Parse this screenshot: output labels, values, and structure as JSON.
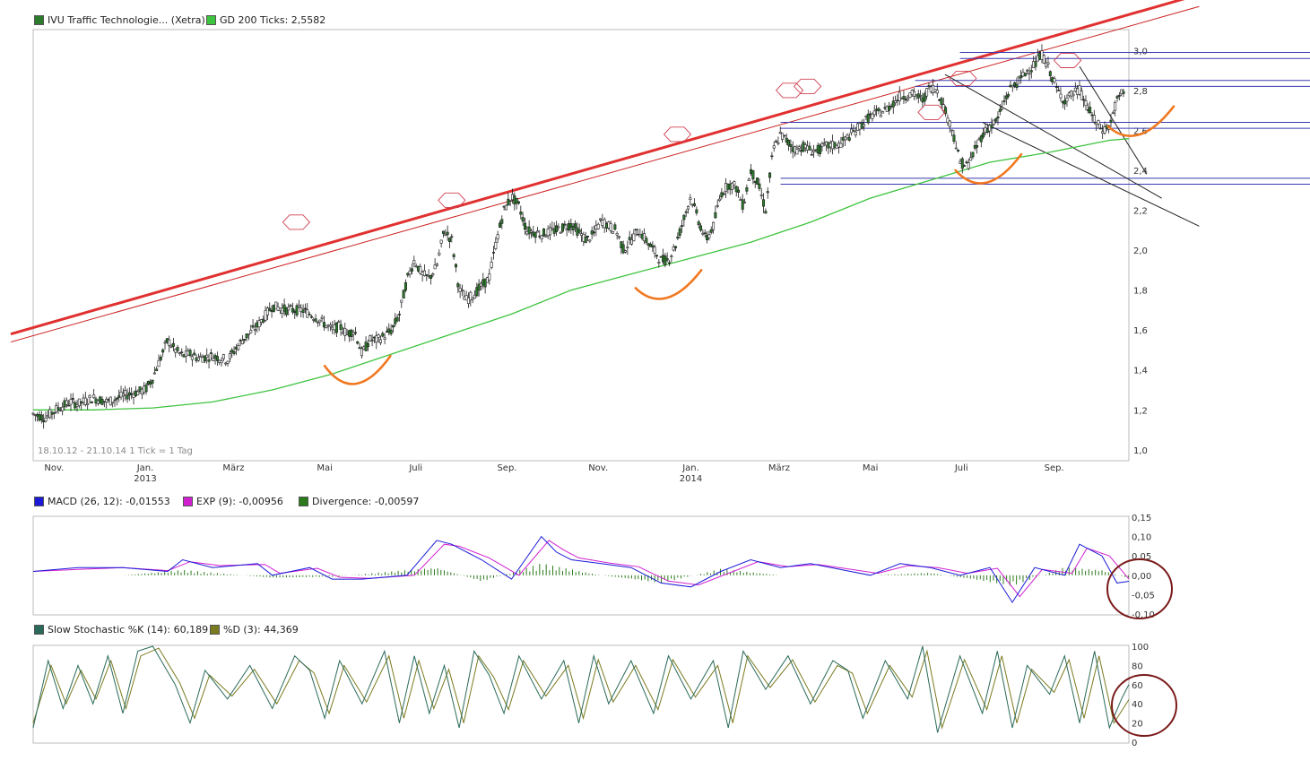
{
  "colors": {
    "price_bar": "#2c7a2c",
    "gd200": "#3ec33e",
    "trend_thick": "#e03030",
    "trend_thin": "#cc2020",
    "hline": "#3a3ab0",
    "channel": "#222222",
    "curve": "#f07820",
    "hexagon": "#d04050",
    "macd": "#1a1ad8",
    "exp": "#d020d0",
    "divergence": "#2a7a1a",
    "stoch_k": "#2a6a5a",
    "stoch_d": "#7a7a20",
    "circle": "#7a1a1a",
    "frame": "#bbbbbb"
  },
  "legends": {
    "price": [
      {
        "label": "IVU Traffic Technologie... (Xetra)",
        "color": "#2c7a2c"
      },
      {
        "label": "GD 200 Ticks: 2,5582",
        "color": "#3ec33e"
      }
    ],
    "macd": [
      {
        "label": "MACD (26, 12): -0,01553",
        "color": "#1a1ad8"
      },
      {
        "label": "EXP (9): -0,00956",
        "color": "#d020d0"
      },
      {
        "label": "Divergence: -0,00597",
        "color": "#2a7a1a"
      }
    ],
    "stoch": [
      {
        "label": "Slow Stochastic %K (14): 60,189",
        "color": "#2a6a5a"
      },
      {
        "label": "%D (3): 44,369",
        "color": "#7a7a20"
      }
    ]
  },
  "info_text": "18.10.12 - 21.10.14   1 Tick = 1 Tag",
  "chart_data": [
    {
      "id": "price",
      "type": "line",
      "title": "IVU Traffic Technologie... (Xetra)",
      "ylim": [
        0.95,
        3.1
      ],
      "y_ticks": [
        "1,0",
        "1,2",
        "1,4",
        "1,6",
        "1,8",
        "2,0",
        "2,2",
        "2,4",
        "2,6",
        "2,8",
        "3,0"
      ],
      "x_ticks": [
        "Nov.",
        "Jan.",
        "März",
        "Mai",
        "Juli",
        "Sep.",
        "Nov.",
        "Jan.",
        "März",
        "Mai",
        "Juli",
        "Sep."
      ],
      "x_tick_years": [
        "",
        "2013",
        "",
        "",
        "",
        "",
        "",
        "2014",
        "",
        "",
        "",
        ""
      ],
      "x_range_days": [
        0,
        733
      ],
      "x_tick_days": [
        14,
        75,
        134,
        195,
        256,
        317,
        378,
        440,
        499,
        560,
        621,
        683
      ],
      "series": [
        {
          "name": "IVU Traffic Technologie... (Xetra)",
          "x": [
            0,
            8,
            15,
            25,
            30,
            40,
            50,
            60,
            75,
            80,
            90,
            95,
            100,
            105,
            110,
            120,
            130,
            140,
            150,
            160,
            170,
            180,
            190,
            200,
            205,
            210,
            215,
            220,
            225,
            230,
            235,
            240,
            245,
            250,
            255,
            260,
            265,
            270,
            275,
            280,
            285,
            290,
            295,
            300,
            305,
            310,
            315,
            320,
            325,
            330,
            340,
            350,
            360,
            370,
            375,
            380,
            385,
            390,
            395,
            400,
            405,
            410,
            415,
            420,
            425,
            430,
            435,
            440,
            445,
            450,
            455,
            460,
            465,
            470,
            475,
            480,
            485,
            490,
            495,
            500,
            505,
            510,
            515,
            520,
            525,
            530,
            540,
            550,
            560,
            570,
            580,
            590,
            595,
            600,
            605,
            610,
            615,
            620,
            625,
            630,
            635,
            640,
            645,
            650,
            655,
            660,
            665,
            670,
            675,
            680,
            685,
            690,
            695,
            700,
            705,
            710,
            715,
            720,
            725,
            730
          ],
          "values": [
            1.18,
            1.16,
            1.2,
            1.24,
            1.23,
            1.26,
            1.24,
            1.27,
            1.3,
            1.36,
            1.55,
            1.5,
            1.47,
            1.48,
            1.46,
            1.47,
            1.45,
            1.55,
            1.62,
            1.72,
            1.7,
            1.7,
            1.66,
            1.6,
            1.62,
            1.58,
            1.6,
            1.48,
            1.55,
            1.55,
            1.57,
            1.6,
            1.68,
            1.85,
            1.95,
            1.88,
            1.86,
            1.92,
            2.1,
            2.05,
            1.8,
            1.75,
            1.78,
            1.82,
            1.86,
            2.05,
            2.2,
            2.27,
            2.22,
            2.1,
            2.08,
            2.1,
            2.13,
            2.05,
            2.08,
            2.15,
            2.12,
            2.1,
            2.0,
            2.05,
            2.1,
            2.05,
            2.0,
            1.95,
            1.95,
            2.03,
            2.15,
            2.27,
            2.15,
            2.05,
            2.12,
            2.28,
            2.33,
            2.32,
            2.22,
            2.4,
            2.33,
            2.2,
            2.5,
            2.58,
            2.54,
            2.5,
            2.52,
            2.5,
            2.5,
            2.52,
            2.53,
            2.6,
            2.67,
            2.7,
            2.77,
            2.78,
            2.75,
            2.82,
            2.8,
            2.7,
            2.6,
            2.44,
            2.42,
            2.5,
            2.58,
            2.62,
            2.65,
            2.75,
            2.82,
            2.85,
            2.9,
            2.93,
            2.98,
            2.9,
            2.8,
            2.75,
            2.78,
            2.8,
            2.72,
            2.65,
            2.6,
            2.62,
            2.75,
            2.8
          ]
        },
        {
          "name": "GD 200 Ticks",
          "x": [
            0,
            40,
            80,
            120,
            160,
            200,
            240,
            280,
            320,
            360,
            400,
            440,
            480,
            520,
            560,
            600,
            640,
            680,
            720,
            733
          ],
          "values": [
            1.2,
            1.2,
            1.21,
            1.24,
            1.3,
            1.38,
            1.48,
            1.58,
            1.68,
            1.8,
            1.88,
            1.96,
            2.04,
            2.14,
            2.26,
            2.35,
            2.44,
            2.49,
            2.55,
            2.5582
          ]
        }
      ],
      "annotations": [
        {
          "type": "trendline",
          "points": [
            [
              -15,
              1.58
            ],
            [
              780,
              3.28
            ]
          ]
        },
        {
          "type": "trendline_thin",
          "points": [
            [
              -15,
              1.54
            ],
            [
              780,
              3.22
            ]
          ]
        },
        {
          "type": "hband",
          "y": [
            2.96,
            2.99
          ],
          "x_from": 620
        },
        {
          "type": "hband",
          "y": [
            2.82,
            2.85
          ],
          "x_from": 590
        },
        {
          "type": "hband",
          "y": [
            2.61,
            2.64
          ],
          "x_from": 500
        },
        {
          "type": "hband",
          "y": [
            2.33,
            2.36
          ],
          "x_from": 500
        },
        {
          "type": "channel",
          "points": [
            [
              635,
              2.64
            ],
            [
              780,
              2.12
            ]
          ]
        },
        {
          "type": "channel",
          "points": [
            [
              610,
              2.88
            ],
            [
              755,
              2.26
            ]
          ]
        },
        {
          "type": "channel",
          "points": [
            [
              700,
              2.92
            ],
            [
              745,
              2.38
            ]
          ]
        }
      ],
      "x_axis_labels": [
        "Nov.",
        "Jan.",
        "März",
        "Mai",
        "Juli",
        "Sep.",
        "Nov.",
        "Jan.",
        "März",
        "Mai",
        "Juli",
        "Sep."
      ]
    },
    {
      "id": "macd",
      "type": "line",
      "title": "MACD (26, 12)",
      "ylim": [
        -0.1,
        0.15
      ],
      "y_ticks": [
        "0,15",
        "0,10",
        "0,05",
        "0,00",
        "-0,05",
        "-0,10"
      ],
      "series": [
        {
          "name": "MACD (26, 12)",
          "x": [
            0,
            30,
            60,
            90,
            100,
            120,
            150,
            160,
            185,
            200,
            220,
            250,
            270,
            280,
            300,
            320,
            340,
            350,
            360,
            380,
            400,
            420,
            440,
            460,
            480,
            500,
            520,
            560,
            580,
            600,
            620,
            640,
            655,
            670,
            690,
            700,
            715,
            725,
            733
          ],
          "values": [
            0.01,
            0.02,
            0.02,
            0.01,
            0.04,
            0.02,
            0.03,
            0.0,
            0.02,
            -0.01,
            -0.01,
            0.0,
            0.09,
            0.08,
            0.04,
            -0.01,
            0.1,
            0.06,
            0.04,
            0.03,
            0.02,
            -0.02,
            -0.03,
            0.01,
            0.04,
            0.02,
            0.03,
            0.0,
            0.03,
            0.02,
            0.0,
            0.02,
            -0.07,
            0.02,
            0.0,
            0.08,
            0.05,
            -0.02,
            -0.01553
          ]
        },
        {
          "name": "EXP (9)",
          "x": [
            0,
            30,
            60,
            90,
            105,
            125,
            155,
            165,
            190,
            205,
            225,
            255,
            275,
            285,
            305,
            325,
            345,
            355,
            365,
            385,
            405,
            425,
            445,
            465,
            485,
            505,
            525,
            565,
            585,
            605,
            625,
            645,
            660,
            675,
            695,
            705,
            720,
            733
          ],
          "values": [
            0.01,
            0.015,
            0.02,
            0.012,
            0.035,
            0.025,
            0.028,
            0.005,
            0.018,
            -0.005,
            -0.008,
            0.0,
            0.08,
            0.075,
            0.045,
            0.0,
            0.09,
            0.065,
            0.045,
            0.032,
            0.022,
            -0.015,
            -0.025,
            0.005,
            0.035,
            0.022,
            0.028,
            0.005,
            0.025,
            0.02,
            0.005,
            0.018,
            -0.055,
            0.015,
            0.005,
            0.07,
            0.05,
            -0.00956
          ]
        },
        {
          "name": "Divergence",
          "x": [
            0,
            60,
            100,
            160,
            200,
            270,
            300,
            340,
            380,
            420,
            460,
            500,
            560,
            600,
            655,
            690,
            715,
            733
          ],
          "values": [
            0.0,
            0.0,
            0.01,
            -0.005,
            -0.003,
            0.015,
            -0.012,
            0.022,
            0.0,
            -0.015,
            0.012,
            0.0,
            0.0,
            0.005,
            -0.02,
            0.015,
            0.01,
            -0.00597
          ]
        }
      ]
    },
    {
      "id": "stoch",
      "type": "line",
      "title": "Slow Stochastic %K (14)",
      "ylim": [
        0,
        100
      ],
      "y_ticks": [
        "100",
        "80",
        "60",
        "40",
        "20",
        "0"
      ],
      "series": [
        {
          "name": "Slow Stochastic %K (14)",
          "x": [
            0,
            10,
            20,
            30,
            40,
            50,
            60,
            70,
            80,
            95,
            105,
            115,
            130,
            145,
            160,
            175,
            185,
            195,
            205,
            220,
            235,
            245,
            255,
            265,
            275,
            285,
            295,
            305,
            315,
            325,
            340,
            355,
            365,
            375,
            385,
            400,
            415,
            425,
            440,
            455,
            465,
            475,
            490,
            505,
            520,
            535,
            545,
            555,
            570,
            585,
            595,
            605,
            620,
            635,
            645,
            655,
            665,
            680,
            690,
            700,
            710,
            720,
            728,
            733
          ],
          "values": [
            15,
            85,
            35,
            80,
            40,
            90,
            30,
            95,
            100,
            60,
            20,
            75,
            45,
            80,
            35,
            90,
            75,
            25,
            85,
            40,
            95,
            20,
            90,
            30,
            80,
            15,
            95,
            70,
            30,
            90,
            45,
            85,
            20,
            90,
            40,
            85,
            30,
            90,
            45,
            85,
            15,
            95,
            55,
            90,
            40,
            85,
            75,
            25,
            85,
            45,
            100,
            10,
            90,
            30,
            95,
            15,
            80,
            50,
            90,
            20,
            95,
            15,
            45,
            60.189
          ]
        },
        {
          "name": "%D (3)",
          "x": [
            0,
            12,
            22,
            32,
            42,
            52,
            62,
            72,
            84,
            98,
            108,
            118,
            133,
            148,
            163,
            178,
            188,
            198,
            208,
            223,
            238,
            248,
            258,
            268,
            278,
            288,
            298,
            308,
            318,
            328,
            343,
            358,
            368,
            378,
            388,
            403,
            418,
            428,
            443,
            458,
            468,
            478,
            493,
            508,
            523,
            538,
            548,
            558,
            573,
            588,
            598,
            608,
            623,
            638,
            648,
            658,
            668,
            683,
            693,
            703,
            713,
            723,
            733
          ],
          "values": [
            20,
            80,
            40,
            75,
            45,
            85,
            35,
            90,
            98,
            62,
            25,
            70,
            48,
            76,
            40,
            85,
            72,
            30,
            80,
            42,
            90,
            25,
            85,
            35,
            76,
            20,
            90,
            68,
            34,
            85,
            48,
            80,
            25,
            86,
            42,
            80,
            34,
            86,
            47,
            80,
            20,
            90,
            57,
            86,
            42,
            80,
            72,
            30,
            80,
            47,
            95,
            15,
            86,
            34,
            90,
            20,
            76,
            52,
            86,
            25,
            90,
            20,
            44.369
          ]
        }
      ]
    }
  ]
}
